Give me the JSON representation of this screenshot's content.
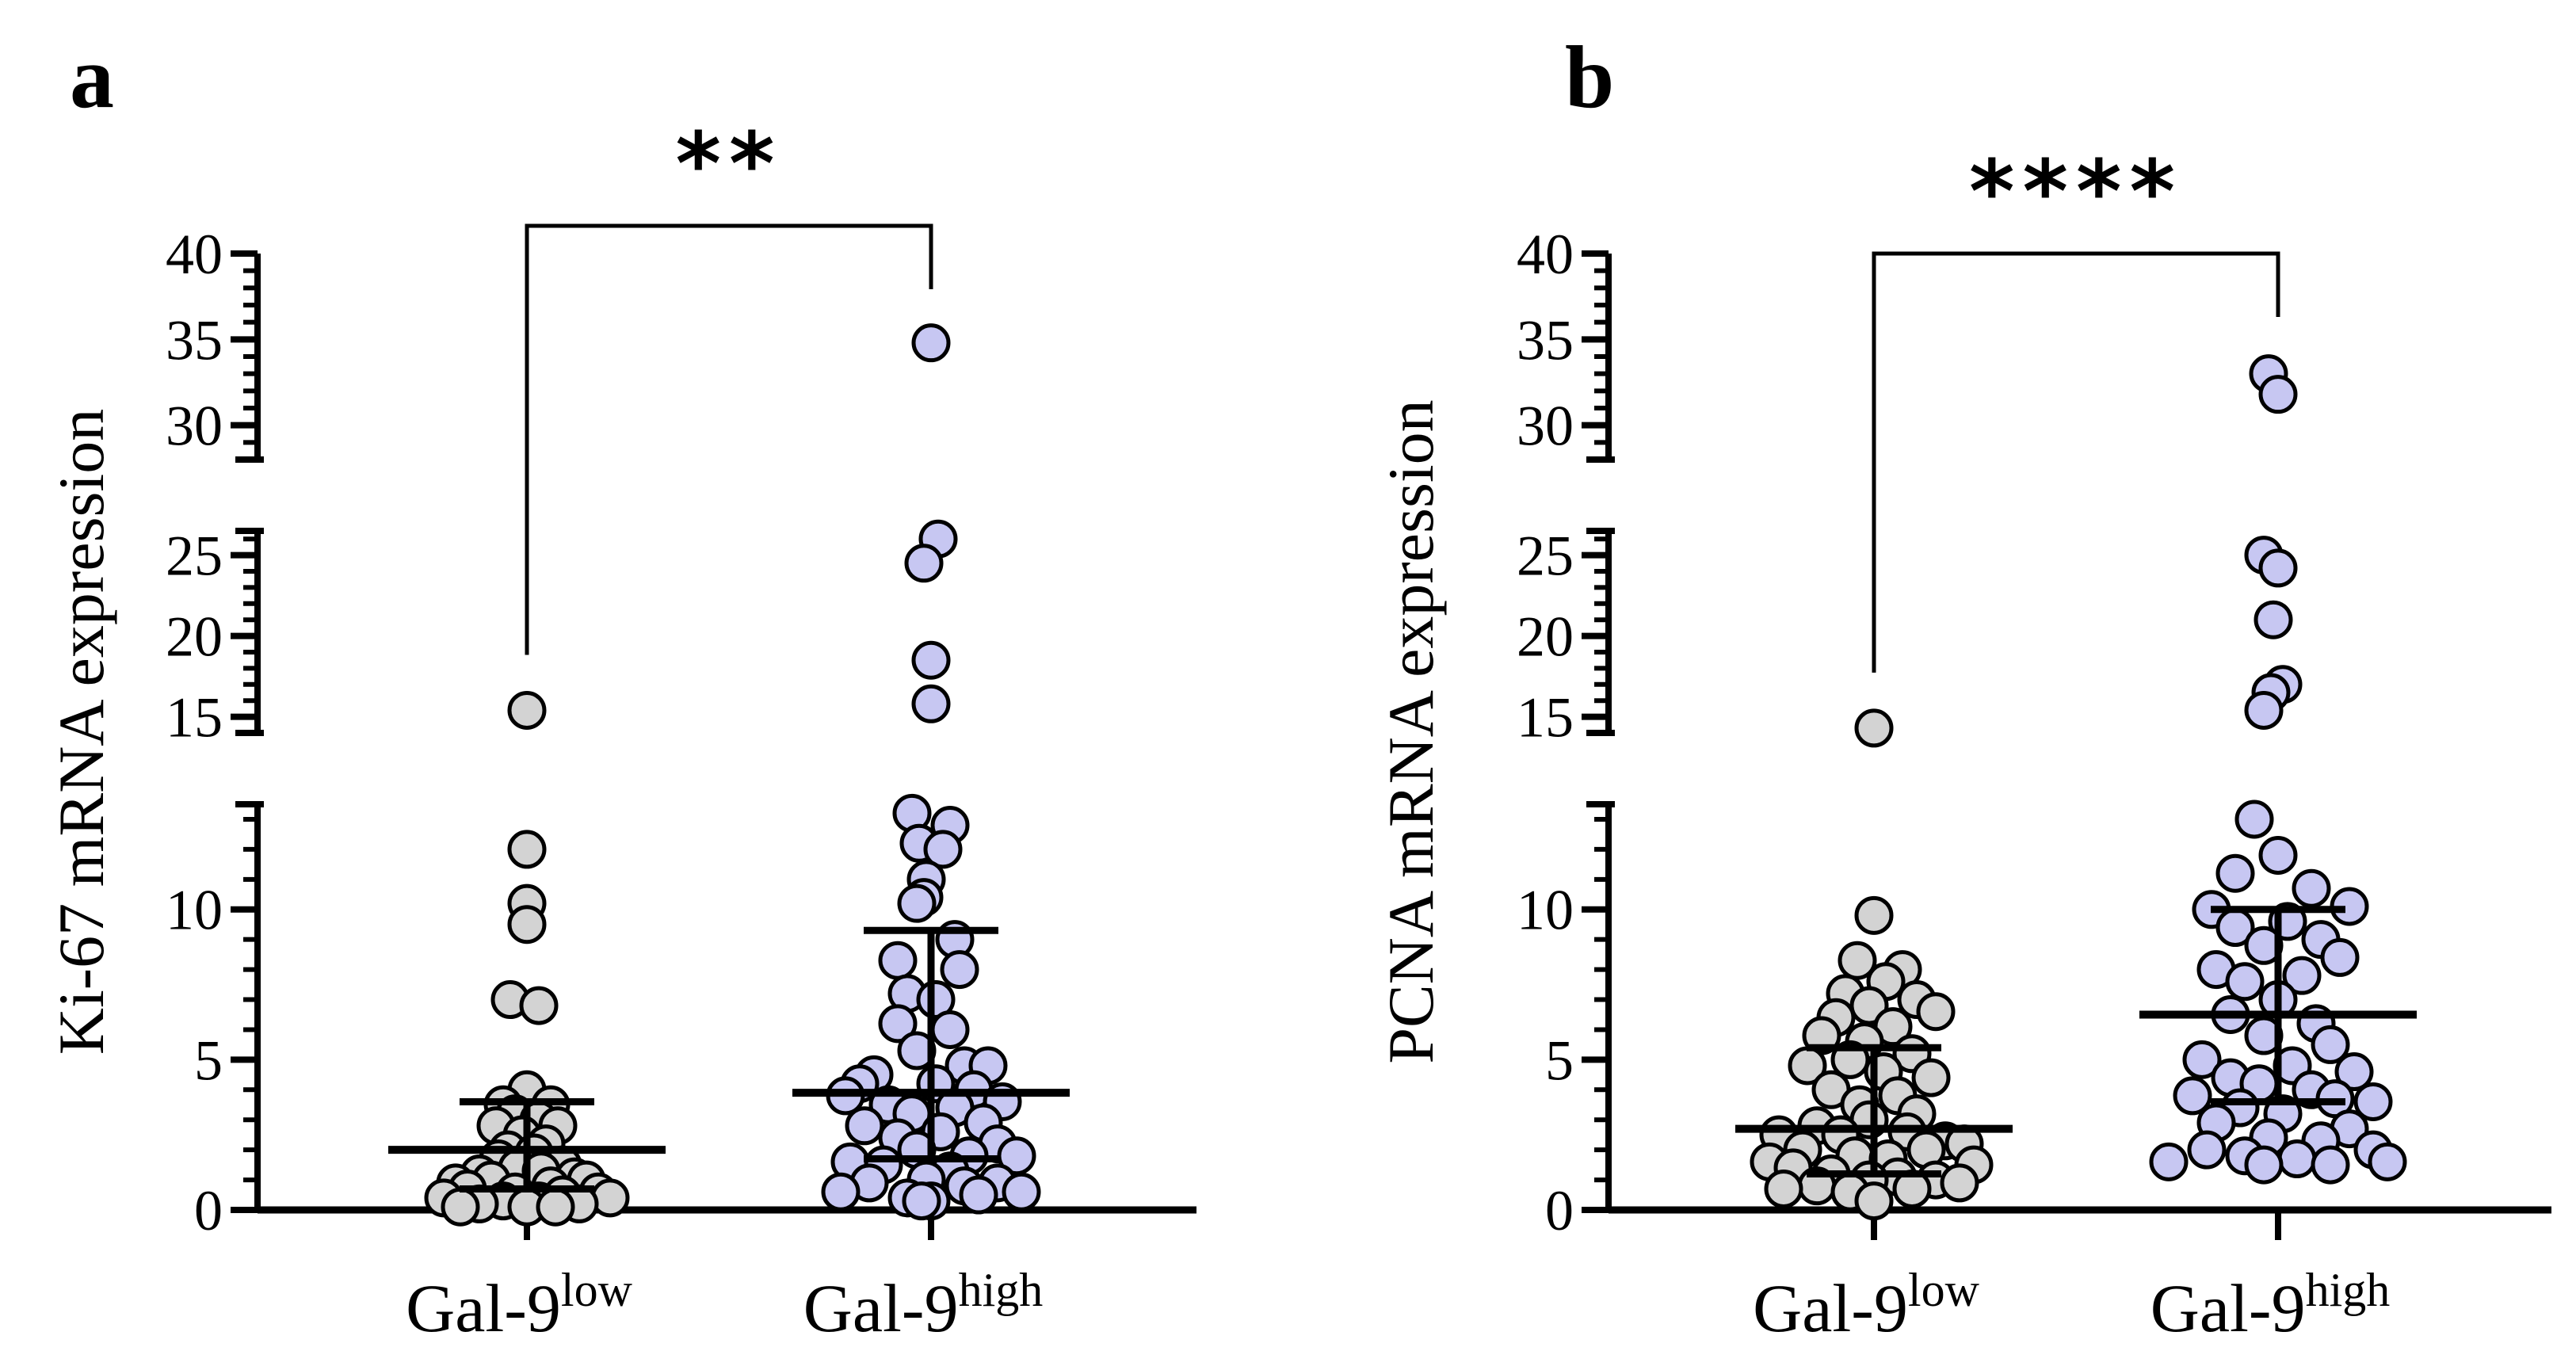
{
  "chart_data": [
    {
      "type": "scatter",
      "subtype": "dot-plot-broken-axis",
      "panel_label": "a",
      "ylabel": "Ki-67 mRNA expression",
      "significance": "**",
      "categories": [
        "Gal-9low",
        "Gal-9high"
      ],
      "category_labels": [
        {
          "base": "Gal-9",
          "sup": "low"
        },
        {
          "base": "Gal-9",
          "sup": "high"
        }
      ],
      "y_segments": [
        {
          "range": [
            0,
            13.5
          ],
          "ticks": [
            0,
            5,
            10
          ]
        },
        {
          "range": [
            14,
            26.5
          ],
          "ticks": [
            15,
            20,
            25
          ]
        },
        {
          "range": [
            28,
            40
          ],
          "ticks": [
            30,
            35,
            40
          ]
        }
      ],
      "series": [
        {
          "name": "Gal-9low",
          "color": "#d3d3d3",
          "median": 2.0,
          "iqr": [
            0.7,
            3.6
          ],
          "points": [
            {
              "dx": 0.0,
              "y": 15.4
            },
            {
              "dx": 0.0,
              "y": 12.0
            },
            {
              "dx": 0.0,
              "y": 10.2
            },
            {
              "dx": 0.0,
              "y": 9.5
            },
            {
              "dx": -0.07,
              "y": 7.0
            },
            {
              "dx": 0.05,
              "y": 6.8
            },
            {
              "dx": 0.0,
              "y": 4.0
            },
            {
              "dx": -0.1,
              "y": 3.5
            },
            {
              "dx": 0.1,
              "y": 3.5
            },
            {
              "dx": -0.05,
              "y": 3.2
            },
            {
              "dx": 0.05,
              "y": 3.0
            },
            {
              "dx": -0.13,
              "y": 2.8
            },
            {
              "dx": 0.13,
              "y": 2.8
            },
            {
              "dx": -0.02,
              "y": 2.5
            },
            {
              "dx": 0.08,
              "y": 2.2
            },
            {
              "dx": -0.08,
              "y": 2.0
            },
            {
              "dx": 0.03,
              "y": 1.9
            },
            {
              "dx": -0.12,
              "y": 1.7
            },
            {
              "dx": 0.15,
              "y": 1.5
            },
            {
              "dx": -0.04,
              "y": 1.4
            },
            {
              "dx": 0.06,
              "y": 1.3
            },
            {
              "dx": -0.2,
              "y": 1.2
            },
            {
              "dx": 0.2,
              "y": 1.1
            },
            {
              "dx": -0.15,
              "y": 1.0
            },
            {
              "dx": 0.25,
              "y": 1.0
            },
            {
              "dx": -0.3,
              "y": 0.9
            },
            {
              "dx": 0.1,
              "y": 0.8
            },
            {
              "dx": -0.25,
              "y": 0.7
            },
            {
              "dx": 0.3,
              "y": 0.6
            },
            {
              "dx": -0.05,
              "y": 0.6
            },
            {
              "dx": 0.15,
              "y": 0.5
            },
            {
              "dx": -0.35,
              "y": 0.4
            },
            {
              "dx": 0.35,
              "y": 0.4
            },
            {
              "dx": -0.1,
              "y": 0.3
            },
            {
              "dx": 0.05,
              "y": 0.3
            },
            {
              "dx": -0.2,
              "y": 0.2
            },
            {
              "dx": 0.22,
              "y": 0.2
            },
            {
              "dx": 0.0,
              "y": 0.1
            },
            {
              "dx": -0.28,
              "y": 0.1
            },
            {
              "dx": 0.12,
              "y": 0.1
            }
          ]
        },
        {
          "name": "Gal-9high",
          "color": "#c7c7f2",
          "median": 3.9,
          "iqr": [
            1.7,
            9.3
          ],
          "points": [
            {
              "dx": 0.0,
              "y": 34.8
            },
            {
              "dx": 0.03,
              "y": 26.0
            },
            {
              "dx": -0.03,
              "y": 24.5
            },
            {
              "dx": 0.0,
              "y": 18.5
            },
            {
              "dx": 0.0,
              "y": 15.8
            },
            {
              "dx": -0.08,
              "y": 13.2
            },
            {
              "dx": 0.08,
              "y": 12.8
            },
            {
              "dx": -0.05,
              "y": 12.2
            },
            {
              "dx": 0.05,
              "y": 12.0
            },
            {
              "dx": -0.02,
              "y": 11.0
            },
            {
              "dx": -0.03,
              "y": 10.4
            },
            {
              "dx": -0.06,
              "y": 10.2
            },
            {
              "dx": 0.1,
              "y": 9.0
            },
            {
              "dx": -0.14,
              "y": 8.3
            },
            {
              "dx": 0.12,
              "y": 8.0
            },
            {
              "dx": -0.1,
              "y": 7.2
            },
            {
              "dx": 0.02,
              "y": 7.0
            },
            {
              "dx": -0.14,
              "y": 6.2
            },
            {
              "dx": 0.08,
              "y": 6.0
            },
            {
              "dx": -0.06,
              "y": 5.3
            },
            {
              "dx": 0.14,
              "y": 4.8
            },
            {
              "dx": 0.24,
              "y": 4.8
            },
            {
              "dx": -0.24,
              "y": 4.5
            },
            {
              "dx": -0.3,
              "y": 4.2
            },
            {
              "dx": 0.02,
              "y": 4.2
            },
            {
              "dx": 0.18,
              "y": 4.0
            },
            {
              "dx": -0.36,
              "y": 3.8
            },
            {
              "dx": 0.3,
              "y": 3.6
            },
            {
              "dx": -0.18,
              "y": 3.5
            },
            {
              "dx": 0.1,
              "y": 3.4
            },
            {
              "dx": -0.08,
              "y": 3.2
            },
            {
              "dx": 0.22,
              "y": 2.9
            },
            {
              "dx": -0.28,
              "y": 2.8
            },
            {
              "dx": 0.04,
              "y": 2.6
            },
            {
              "dx": -0.14,
              "y": 2.4
            },
            {
              "dx": 0.28,
              "y": 2.2
            },
            {
              "dx": -0.06,
              "y": 2.0
            },
            {
              "dx": 0.16,
              "y": 1.8
            },
            {
              "dx": 0.36,
              "y": 1.8
            },
            {
              "dx": -0.34,
              "y": 1.6
            },
            {
              "dx": -0.2,
              "y": 1.5
            },
            {
              "dx": 0.08,
              "y": 1.3
            },
            {
              "dx": -0.02,
              "y": 1.0
            },
            {
              "dx": -0.26,
              "y": 0.9
            },
            {
              "dx": 0.28,
              "y": 0.9
            },
            {
              "dx": 0.14,
              "y": 0.8
            },
            {
              "dx": -0.38,
              "y": 0.6
            },
            {
              "dx": 0.38,
              "y": 0.6
            },
            {
              "dx": 0.2,
              "y": 0.5
            },
            {
              "dx": -0.1,
              "y": 0.4
            },
            {
              "dx": 0.0,
              "y": 0.3
            },
            {
              "dx": -0.04,
              "y": 0.3
            }
          ]
        }
      ]
    },
    {
      "type": "scatter",
      "subtype": "dot-plot-broken-axis",
      "panel_label": "b",
      "ylabel": "PCNA mRNA expression",
      "significance": "****",
      "categories": [
        "Gal-9low",
        "Gal-9high"
      ],
      "category_labels": [
        {
          "base": "Gal-9",
          "sup": "low"
        },
        {
          "base": "Gal-9",
          "sup": "high"
        }
      ],
      "y_segments": [
        {
          "range": [
            0,
            13.5
          ],
          "ticks": [
            0,
            5,
            10
          ]
        },
        {
          "range": [
            14,
            26.5
          ],
          "ticks": [
            15,
            20,
            25
          ]
        },
        {
          "range": [
            28,
            40
          ],
          "ticks": [
            30,
            35,
            40
          ]
        }
      ],
      "series": [
        {
          "name": "Gal-9low",
          "color": "#d3d3d3",
          "median": 2.7,
          "iqr": [
            1.2,
            5.4
          ],
          "points": [
            {
              "dx": 0.0,
              "y": 14.3
            },
            {
              "dx": 0.0,
              "y": 9.8
            },
            {
              "dx": -0.07,
              "y": 8.3
            },
            {
              "dx": 0.12,
              "y": 8.0
            },
            {
              "dx": 0.05,
              "y": 7.6
            },
            {
              "dx": -0.12,
              "y": 7.2
            },
            {
              "dx": 0.18,
              "y": 7.0
            },
            {
              "dx": -0.02,
              "y": 6.8
            },
            {
              "dx": 0.26,
              "y": 6.6
            },
            {
              "dx": -0.16,
              "y": 6.4
            },
            {
              "dx": 0.08,
              "y": 6.1
            },
            {
              "dx": -0.22,
              "y": 5.8
            },
            {
              "dx": -0.04,
              "y": 5.6
            },
            {
              "dx": 0.16,
              "y": 5.2
            },
            {
              "dx": -0.1,
              "y": 5.0
            },
            {
              "dx": -0.28,
              "y": 4.8
            },
            {
              "dx": 0.04,
              "y": 4.6
            },
            {
              "dx": 0.24,
              "y": 4.4
            },
            {
              "dx": -0.18,
              "y": 4.0
            },
            {
              "dx": 0.1,
              "y": 3.8
            },
            {
              "dx": -0.06,
              "y": 3.5
            },
            {
              "dx": 0.18,
              "y": 3.2
            },
            {
              "dx": -0.02,
              "y": 3.0
            },
            {
              "dx": -0.24,
              "y": 2.8
            },
            {
              "dx": 0.14,
              "y": 2.6
            },
            {
              "dx": -0.14,
              "y": 2.5
            },
            {
              "dx": -0.4,
              "y": 2.5
            },
            {
              "dx": 0.3,
              "y": 2.3
            },
            {
              "dx": 0.38,
              "y": 2.2
            },
            {
              "dx": -0.3,
              "y": 2.0
            },
            {
              "dx": 0.22,
              "y": 2.0
            },
            {
              "dx": -0.08,
              "y": 1.8
            },
            {
              "dx": 0.06,
              "y": 1.7
            },
            {
              "dx": -0.44,
              "y": 1.6
            },
            {
              "dx": 0.42,
              "y": 1.5
            },
            {
              "dx": -0.34,
              "y": 1.4
            },
            {
              "dx": -0.18,
              "y": 1.2
            },
            {
              "dx": 0.1,
              "y": 1.1
            },
            {
              "dx": 0.26,
              "y": 1.0
            },
            {
              "dx": -0.02,
              "y": 1.0
            },
            {
              "dx": 0.36,
              "y": 0.9
            },
            {
              "dx": -0.24,
              "y": 0.8
            },
            {
              "dx": 0.16,
              "y": 0.7
            },
            {
              "dx": -0.38,
              "y": 0.7
            },
            {
              "dx": -0.1,
              "y": 0.6
            },
            {
              "dx": 0.0,
              "y": 0.3
            }
          ]
        },
        {
          "name": "Gal-9high",
          "color": "#c7c7f2",
          "median": 6.5,
          "iqr": [
            3.6,
            10.0
          ],
          "points": [
            {
              "dx": -0.04,
              "y": 33.0
            },
            {
              "dx": 0.0,
              "y": 31.8
            },
            {
              "dx": -0.06,
              "y": 25.0
            },
            {
              "dx": 0.0,
              "y": 24.2
            },
            {
              "dx": -0.02,
              "y": 21.0
            },
            {
              "dx": 0.02,
              "y": 17.0
            },
            {
              "dx": -0.03,
              "y": 16.5
            },
            {
              "dx": -0.06,
              "y": 15.4
            },
            {
              "dx": -0.1,
              "y": 13.0
            },
            {
              "dx": 0.0,
              "y": 11.8
            },
            {
              "dx": -0.18,
              "y": 11.2
            },
            {
              "dx": 0.14,
              "y": 10.7
            },
            {
              "dx": -0.28,
              "y": 10.0
            },
            {
              "dx": 0.3,
              "y": 10.1
            },
            {
              "dx": -0.18,
              "y": 9.4
            },
            {
              "dx": 0.04,
              "y": 9.6
            },
            {
              "dx": 0.18,
              "y": 9.0
            },
            {
              "dx": -0.06,
              "y": 8.8
            },
            {
              "dx": 0.26,
              "y": 8.4
            },
            {
              "dx": -0.26,
              "y": 8.0
            },
            {
              "dx": 0.1,
              "y": 7.8
            },
            {
              "dx": -0.14,
              "y": 7.6
            },
            {
              "dx": 0.0,
              "y": 7.0
            },
            {
              "dx": -0.2,
              "y": 6.5
            },
            {
              "dx": 0.16,
              "y": 6.2
            },
            {
              "dx": -0.06,
              "y": 5.8
            },
            {
              "dx": 0.22,
              "y": 5.5
            },
            {
              "dx": -0.32,
              "y": 5.0
            },
            {
              "dx": 0.06,
              "y": 4.8
            },
            {
              "dx": 0.32,
              "y": 4.6
            },
            {
              "dx": -0.2,
              "y": 4.4
            },
            {
              "dx": -0.08,
              "y": 4.2
            },
            {
              "dx": 0.14,
              "y": 4.0
            },
            {
              "dx": -0.36,
              "y": 3.8
            },
            {
              "dx": 0.24,
              "y": 3.7
            },
            {
              "dx": 0.4,
              "y": 3.6
            },
            {
              "dx": -0.16,
              "y": 3.4
            },
            {
              "dx": 0.02,
              "y": 3.2
            },
            {
              "dx": -0.26,
              "y": 2.9
            },
            {
              "dx": 0.3,
              "y": 2.7
            },
            {
              "dx": -0.04,
              "y": 2.4
            },
            {
              "dx": 0.18,
              "y": 2.3
            },
            {
              "dx": -0.3,
              "y": 2.0
            },
            {
              "dx": 0.4,
              "y": 2.0
            },
            {
              "dx": -0.14,
              "y": 1.8
            },
            {
              "dx": 0.08,
              "y": 1.7
            },
            {
              "dx": -0.46,
              "y": 1.6
            },
            {
              "dx": 0.46,
              "y": 1.6
            },
            {
              "dx": -0.06,
              "y": 1.5
            },
            {
              "dx": 0.22,
              "y": 1.5
            }
          ]
        }
      ]
    }
  ]
}
